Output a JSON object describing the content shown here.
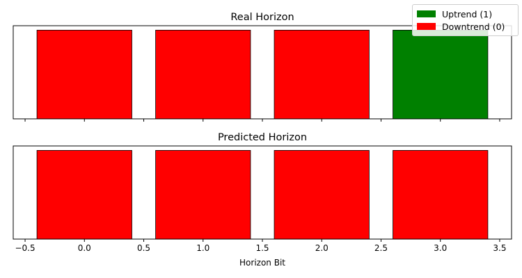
{
  "chart_data": [
    {
      "type": "bar",
      "title": "Real Horizon",
      "x": [
        0,
        1,
        2,
        3
      ],
      "values": [
        1,
        1,
        1,
        1
      ],
      "classes": [
        0,
        0,
        0,
        1
      ],
      "bar_width": 0.8,
      "xlim": [
        -0.6,
        3.6
      ],
      "xticks": [
        -0.5,
        0.0,
        0.5,
        1.0,
        1.5,
        2.0,
        2.5,
        3.0,
        3.5
      ],
      "xtick_labels_shown": false,
      "yticks_shown": false,
      "xlabel": "",
      "ylabel": ""
    },
    {
      "type": "bar",
      "title": "Predicted Horizon",
      "x": [
        0,
        1,
        2,
        3
      ],
      "values": [
        1,
        1,
        1,
        1
      ],
      "classes": [
        0,
        0,
        0,
        0
      ],
      "bar_width": 0.8,
      "xlim": [
        -0.6,
        3.6
      ],
      "xticks": [
        -0.5,
        0.0,
        0.5,
        1.0,
        1.5,
        2.0,
        2.5,
        3.0,
        3.5
      ],
      "xtick_labels": [
        "−0.5",
        "0.0",
        "0.5",
        "1.0",
        "1.5",
        "2.0",
        "2.5",
        "3.0",
        "3.5"
      ],
      "xtick_labels_shown": true,
      "yticks_shown": false,
      "xlabel": "Horizon Bit",
      "ylabel": ""
    }
  ],
  "legend": {
    "placement": "top-right",
    "entries": [
      {
        "label": "Uptrend (1)",
        "color": "#008000"
      },
      {
        "label": "Downtrend (0)",
        "color": "#ff0000"
      }
    ]
  },
  "colors": {
    "uptrend": "#008000",
    "downtrend": "#ff0000",
    "edge": "#000000"
  }
}
